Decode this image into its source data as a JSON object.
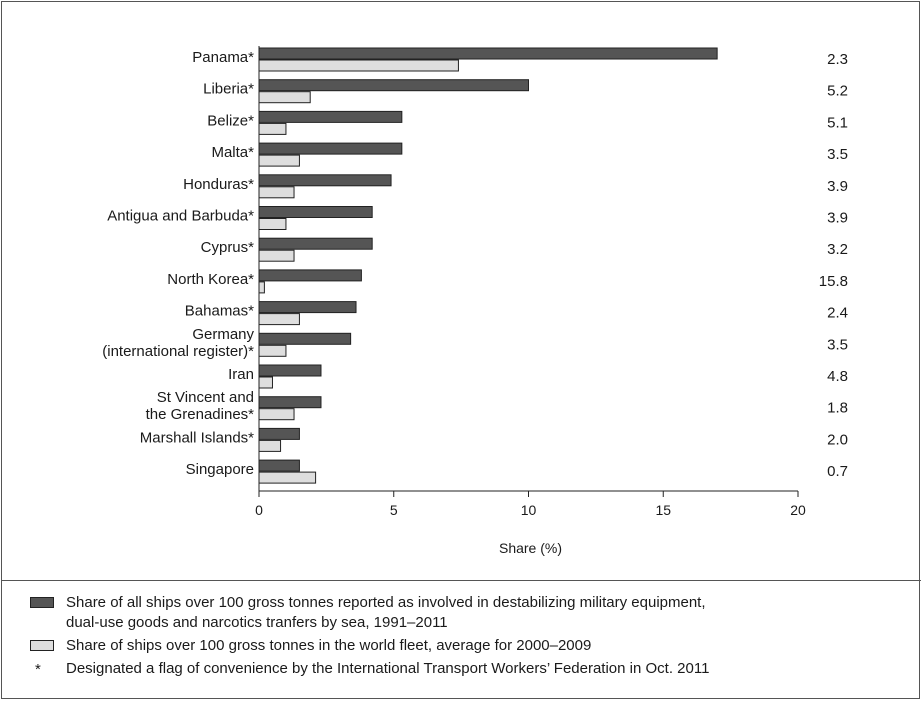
{
  "chart_data": {
    "type": "bar",
    "orientation": "horizontal",
    "categories": [
      [
        "Panama*"
      ],
      [
        "Liberia*"
      ],
      [
        "Belize*"
      ],
      [
        "Malta*"
      ],
      [
        "Honduras*"
      ],
      [
        "Antigua and Barbuda*"
      ],
      [
        "Cyprus*"
      ],
      [
        "North Korea*"
      ],
      [
        "Bahamas*"
      ],
      [
        "Germany",
        "(international register)*"
      ],
      [
        "Iran"
      ],
      [
        "St Vincent and",
        "the Grenadines*"
      ],
      [
        "Marshall Islands*"
      ],
      [
        "Singapore"
      ]
    ],
    "series": [
      {
        "name": "Share of all ships over 100 gross tonnes reported as involved in destabilizing military equipment, dual-use goods and narcotics tranfers by sea, 1991–2011",
        "color": "#555555",
        "values": [
          17.0,
          10.0,
          5.3,
          5.3,
          4.9,
          4.2,
          4.2,
          3.8,
          3.6,
          3.4,
          2.3,
          2.3,
          1.5,
          1.5
        ]
      },
      {
        "name": "Share of ships over 100 gross tonnes in the world fleet, average for 2000–2009",
        "color": "#dedede",
        "values": [
          7.4,
          1.9,
          1.0,
          1.5,
          1.3,
          1.0,
          1.3,
          0.2,
          1.5,
          1.0,
          0.5,
          1.3,
          0.8,
          2.1
        ]
      }
    ],
    "ratios": [
      "2.3",
      "5.2",
      "5.1",
      "3.5",
      "3.9",
      "3.9",
      "3.2",
      "15.8",
      "2.4",
      "3.5",
      "4.8",
      "1.8",
      "2.0",
      "0.7"
    ],
    "xlabel": "Share (%)",
    "xlim": [
      0,
      20
    ],
    "xticks": [
      0,
      5,
      10,
      15,
      20
    ],
    "grid": false,
    "legend_position": "bottom"
  },
  "legend": {
    "item1_line1": "Share of all ships over 100 gross tonnes reported as involved in destabilizing military equipment,",
    "item1_line2": "dual-use goods and narcotics tranfers by sea, 1991–2011",
    "item2": "Share of ships over 100 gross tonnes in the world fleet, average for 2000–2009",
    "footnote_symbol": "*",
    "footnote": "Designated a flag of convenience by the International Transport Workers’ Federation in Oct. 2011"
  }
}
